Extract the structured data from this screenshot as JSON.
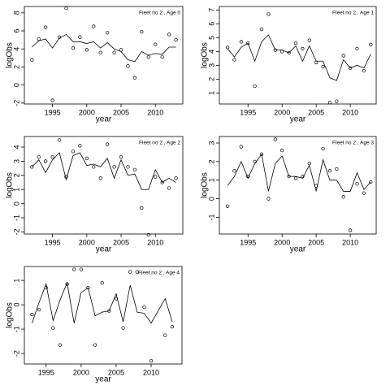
{
  "chart_data": [
    {
      "type": "line",
      "title": "Fleet no 2 , Age 0",
      "xlabel": "year",
      "ylabel": "logObs",
      "x": [
        1992,
        1993,
        1994,
        1995,
        1996,
        1997,
        1998,
        1999,
        2000,
        2001,
        2002,
        2003,
        2004,
        2005,
        2006,
        2007,
        2008,
        2009,
        2010,
        2011,
        2012,
        2013
      ],
      "series": [
        {
          "marker": "circle",
          "color": "#000000",
          "values": [
            2.8,
            5.1,
            6.4,
            -1.7,
            5.3,
            8.5,
            4.1,
            5.3,
            3.9,
            6.5,
            3.6,
            5.8,
            3.6,
            3.9,
            2.1,
            0.8,
            5.9,
            3.1,
            4.5,
            3.1,
            5.6,
            5.0
          ]
        },
        {
          "marker": "line",
          "color": "#000000",
          "values": [
            4.2,
            4.9,
            5.1,
            4.1,
            5.2,
            5.6,
            4.8,
            4.8,
            4.6,
            4.8,
            4.1,
            4.7,
            4.0,
            3.7,
            2.8,
            2.6,
            3.7,
            3.3,
            3.5,
            3.4,
            4.2,
            4.2
          ]
        }
      ],
      "xlim": [
        1990.9,
        2014.0
      ],
      "xticks": [
        1995,
        2000,
        2005,
        2010
      ],
      "ylim": [
        -2.1,
        8.7
      ],
      "yticks": [
        -2,
        0,
        2,
        4,
        6,
        8
      ]
    },
    {
      "type": "line",
      "title": "Fleet no 2 , Age 1",
      "xlabel": "year",
      "ylabel": "logObs",
      "x": [
        1992,
        1993,
        1994,
        1995,
        1996,
        1997,
        1998,
        1999,
        2000,
        2001,
        2002,
        2003,
        2004,
        2005,
        2006,
        2007,
        2008,
        2009,
        2010,
        2011,
        2012,
        2013
      ],
      "series": [
        {
          "marker": "circle",
          "color": "#000000",
          "values": [
            4.3,
            3.4,
            4.7,
            4.6,
            1.5,
            5.6,
            6.7,
            4.1,
            4.0,
            3.9,
            4.6,
            4.2,
            4.8,
            3.2,
            2.9,
            0.3,
            0.4,
            3.7,
            2.8,
            4.2,
            2.6,
            4.5
          ]
        },
        {
          "marker": "line",
          "color": "#000000",
          "values": [
            4.2,
            3.6,
            4.3,
            4.6,
            3.3,
            4.7,
            5.2,
            4.1,
            4.1,
            3.9,
            4.4,
            3.3,
            4.4,
            3.3,
            3.3,
            2.1,
            1.9,
            3.4,
            2.8,
            3.0,
            2.8,
            3.8
          ]
        }
      ],
      "xlim": [
        1990.8,
        2013.8
      ],
      "xticks": [
        1995,
        2000,
        2005,
        2010
      ],
      "ylim": [
        0.2,
        7.25
      ],
      "yticks": [
        1,
        2,
        3,
        4,
        5,
        6,
        7
      ]
    },
    {
      "type": "line",
      "title": "Fleet no 2 , Age 2",
      "xlabel": "year",
      "ylabel": "logObs",
      "x": [
        1992,
        1993,
        1994,
        1995,
        1996,
        1997,
        1998,
        1999,
        2000,
        2001,
        2002,
        2003,
        2004,
        2005,
        2006,
        2007,
        2008,
        2009,
        2010,
        2011,
        2012,
        2013
      ],
      "series": [
        {
          "marker": "circle",
          "color": "#000000",
          "values": [
            2.6,
            3.3,
            3.0,
            3.3,
            4.5,
            1.9,
            3.7,
            4.1,
            3.2,
            2.6,
            1.8,
            4.2,
            2.6,
            3.3,
            2.6,
            2.4,
            -0.3,
            -2.2,
            1.9,
            1.5,
            1.1,
            1.8
          ]
        },
        {
          "marker": "line",
          "color": "#000000",
          "values": [
            2.6,
            3.1,
            2.2,
            3.1,
            3.6,
            1.7,
            3.4,
            3.6,
            2.7,
            2.8,
            2.6,
            3.2,
            1.8,
            3.1,
            2.0,
            2.1,
            1.0,
            1.0,
            2.4,
            1.5,
            1.8,
            1.5
          ]
        }
      ],
      "xlim": [
        1990.9,
        2014.0
      ],
      "xticks": [
        1995,
        2000,
        2005,
        2010
      ],
      "ylim": [
        -2.15,
        4.75
      ],
      "yticks": [
        -2,
        -1,
        0,
        1,
        2,
        3,
        4
      ]
    },
    {
      "type": "line",
      "title": "Fleet no 2 , Age 3",
      "xlabel": "year",
      "ylabel": "logObs",
      "x": [
        1992,
        1993,
        1994,
        1995,
        1996,
        1997,
        1998,
        1999,
        2000,
        2001,
        2002,
        2003,
        2004,
        2005,
        2006,
        2007,
        2008,
        2009,
        2010,
        2011,
        2012,
        2013
      ],
      "series": [
        {
          "marker": "circle",
          "color": "#000000",
          "values": [
            -0.4,
            1.5,
            2.8,
            1.2,
            2.0,
            2.4,
            0.0,
            3.2,
            2.6,
            1.2,
            1.1,
            1.2,
            1.9,
            0.7,
            2.7,
            1.5,
            1.6,
            0.1,
            -1.7,
            0.8,
            0.3,
            0.9
          ]
        },
        {
          "marker": "line",
          "color": "#000000",
          "values": [
            0.7,
            1.2,
            2.0,
            1.1,
            1.9,
            2.4,
            0.4,
            1.9,
            2.3,
            1.2,
            1.2,
            1.1,
            1.8,
            0.4,
            2.1,
            1.0,
            1.0,
            0.4,
            0.4,
            1.4,
            0.5,
            0.9
          ]
        }
      ],
      "xlim": [
        1990.8,
        2013.8
      ],
      "xticks": [
        1995,
        2000,
        2005,
        2010
      ],
      "ylim": [
        -1.9,
        3.35
      ],
      "yticks": [
        -1,
        0,
        1,
        2,
        3
      ]
    },
    {
      "type": "line",
      "title": "Fleet no 2 , Age 4",
      "xlabel": "year",
      "ylabel": "logObs",
      "x": [
        1993,
        1994,
        1995,
        1996,
        1997,
        1998,
        1999,
        2000,
        2001,
        2002,
        2003,
        2004,
        2005,
        2006,
        2007,
        2008,
        2009,
        2010,
        2011,
        2012,
        2013
      ],
      "series": [
        {
          "marker": "circle",
          "color": "#000000",
          "values": [
            -0.4,
            -0.2,
            0.7,
            -0.95,
            -1.65,
            0.85,
            1.45,
            1.45,
            0.7,
            -1.65,
            0.9,
            -0.25,
            0.25,
            -0.95,
            1.35,
            1.35,
            -0.1,
            -2.3,
            null,
            -1.25,
            -0.9
          ]
        },
        {
          "marker": "line",
          "color": "#000000",
          "values": [
            -0.75,
            0.1,
            0.85,
            -0.65,
            0.2,
            0.9,
            -0.75,
            0.5,
            0.7,
            -0.45,
            -0.3,
            -0.25,
            0.45,
            -0.7,
            0.8,
            -0.3,
            -0.35,
            -0.75,
            -0.25,
            0.25,
            -0.7
          ]
        }
      ],
      "xlim": [
        1991.9,
        2014.4
      ],
      "xticks": [
        1995,
        2000,
        2005,
        2010
      ],
      "ylim": [
        -2.43,
        1.57
      ],
      "yticks": [
        -2,
        -1,
        0,
        1
      ]
    }
  ]
}
